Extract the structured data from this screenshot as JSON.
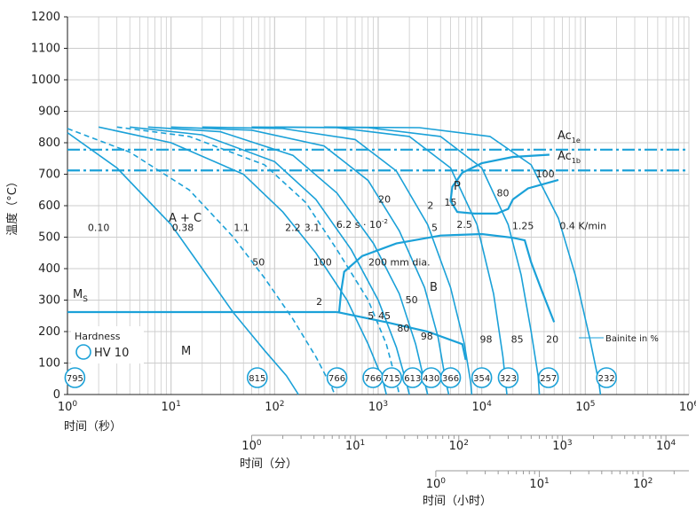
{
  "chart_data": {
    "type": "line",
    "title": "",
    "ylabel": "温度（°C）",
    "xlabel_seconds": "时间（秒）",
    "xlabel_minutes": "时间（分）",
    "xlabel_hours": "时间（小时）",
    "scale": "log",
    "xlim_seconds": [
      1,
      1000000
    ],
    "ylim": [
      0,
      1200
    ],
    "y_ticks": [
      "0",
      "100",
      "200",
      "300",
      "400",
      "500",
      "600",
      "700",
      "800",
      "900",
      "1000",
      "1100",
      "1200"
    ],
    "x_ticks_seconds": [
      {
        "value": 1,
        "base": "10",
        "exp": "0"
      },
      {
        "value": 10,
        "base": "10",
        "exp": "1"
      },
      {
        "value": 100,
        "base": "10",
        "exp": "2"
      },
      {
        "value": 1000,
        "base": "10",
        "exp": "3"
      },
      {
        "value": 10000,
        "base": "10",
        "exp": "4"
      },
      {
        "value": 100000,
        "base": "10",
        "exp": "5"
      },
      {
        "value": 1000000,
        "base": "10",
        "exp": "6"
      }
    ],
    "x_ticks_minutes": [
      {
        "value": 1,
        "base": "10",
        "exp": "0"
      },
      {
        "value": 10,
        "base": "10",
        "exp": "1"
      },
      {
        "value": 100,
        "base": "10",
        "exp": "2"
      },
      {
        "value": 1000,
        "base": "10",
        "exp": "3"
      },
      {
        "value": 10000,
        "base": "10",
        "exp": "4"
      }
    ],
    "x_ticks_hours": [
      {
        "value": 1,
        "base": "10",
        "exp": "0"
      },
      {
        "value": 10,
        "base": "10",
        "exp": "1"
      },
      {
        "value": 100,
        "base": "10",
        "exp": "2"
      }
    ],
    "lines": {
      "Ac1e": {
        "label": "Ac",
        "sub": "1e",
        "y": 778
      },
      "Ac1b": {
        "label": "Ac",
        "sub": "1b",
        "y": 712
      },
      "Ms": {
        "label": "M",
        "sub": "S",
        "y": 262
      }
    },
    "regions": [
      "A + C",
      "P",
      "B",
      "M"
    ],
    "cooling_curves": [
      {
        "label": "0.10",
        "style": "solid",
        "points": [
          [
            1,
            832
          ],
          [
            3,
            720
          ],
          [
            10,
            540
          ],
          [
            20,
            400
          ],
          [
            40,
            260
          ],
          [
            80,
            140
          ],
          [
            130,
            60
          ],
          [
            170,
            0
          ]
        ]
      },
      {
        "label": "0.38",
        "style": "dashed",
        "points": [
          [
            1,
            845
          ],
          [
            4,
            770
          ],
          [
            15,
            650
          ],
          [
            40,
            500
          ],
          [
            80,
            370
          ],
          [
            150,
            240
          ],
          [
            250,
            120
          ],
          [
            360,
            20
          ],
          [
            380,
            0
          ]
        ]
      },
      {
        "label": "1.1",
        "style": "solid",
        "points": [
          [
            2,
            850
          ],
          [
            10,
            800
          ],
          [
            50,
            700
          ],
          [
            120,
            580
          ],
          [
            250,
            450
          ],
          [
            500,
            300
          ],
          [
            800,
            160
          ],
          [
            1100,
            50
          ],
          [
            1200,
            0
          ]
        ]
      },
      {
        "label": "2.2",
        "style": "dashed",
        "points": [
          [
            3,
            850
          ],
          [
            15,
            820
          ],
          [
            80,
            730
          ],
          [
            200,
            610
          ],
          [
            400,
            460
          ],
          [
            800,
            300
          ],
          [
            1200,
            160
          ],
          [
            1500,
            40
          ],
          [
            1600,
            0
          ]
        ]
      },
      {
        "label": "3.1",
        "style": "solid",
        "points": [
          [
            4,
            850
          ],
          [
            20,
            825
          ],
          [
            100,
            740
          ],
          [
            250,
            620
          ],
          [
            550,
            460
          ],
          [
            1000,
            300
          ],
          [
            1500,
            150
          ],
          [
            1900,
            30
          ],
          [
            2000,
            0
          ]
        ]
      },
      {
        "label": "6.2",
        "style": "solid",
        "points": [
          [
            6,
            850
          ],
          [
            30,
            835
          ],
          [
            150,
            760
          ],
          [
            400,
            640
          ],
          [
            900,
            480
          ],
          [
            1600,
            320
          ],
          [
            2300,
            160
          ],
          [
            2800,
            40
          ],
          [
            3000,
            0
          ]
        ]
      },
      {
        "label": "10",
        "style": "solid",
        "points": [
          [
            10,
            850
          ],
          [
            60,
            840
          ],
          [
            300,
            790
          ],
          [
            800,
            680
          ],
          [
            1600,
            520
          ],
          [
            2800,
            340
          ],
          [
            3800,
            180
          ],
          [
            4500,
            40
          ],
          [
            4800,
            0
          ]
        ]
      },
      {
        "label": "20",
        "style": "solid",
        "points": [
          [
            20,
            850
          ],
          [
            120,
            845
          ],
          [
            600,
            810
          ],
          [
            1500,
            710
          ],
          [
            3000,
            540
          ],
          [
            5000,
            340
          ],
          [
            6800,
            160
          ],
          [
            7800,
            40
          ],
          [
            8000,
            0
          ]
        ]
      },
      {
        "label": "2.5",
        "style": "solid",
        "points": [
          [
            60,
            850
          ],
          [
            400,
            848
          ],
          [
            2000,
            820
          ],
          [
            5000,
            720
          ],
          [
            9000,
            540
          ],
          [
            13000,
            320
          ],
          [
            16000,
            120
          ],
          [
            17500,
            0
          ]
        ]
      },
      {
        "label": "1.25",
        "style": "solid",
        "points": [
          [
            100,
            850
          ],
          [
            800,
            848
          ],
          [
            4000,
            820
          ],
          [
            10000,
            720
          ],
          [
            18000,
            540
          ],
          [
            24000,
            380
          ],
          [
            30000,
            200
          ],
          [
            35000,
            60
          ],
          [
            36000,
            0
          ]
        ]
      },
      {
        "label": "0.4 K/min",
        "style": "solid",
        "points": [
          [
            300,
            850
          ],
          [
            2500,
            848
          ],
          [
            12000,
            820
          ],
          [
            30000,
            730
          ],
          [
            55000,
            560
          ],
          [
            80000,
            380
          ],
          [
            110000,
            180
          ],
          [
            135000,
            40
          ],
          [
            140000,
            0
          ]
        ]
      }
    ],
    "cooling_labels": [
      {
        "text": "0.10",
        "x": 2.0,
        "y": 520
      },
      {
        "text": "0.38",
        "x": 13,
        "y": 520
      },
      {
        "text": "1.1",
        "x": 48,
        "y": 520
      },
      {
        "text": "2.2",
        "x": 150,
        "y": 520
      },
      {
        "text": "3.1",
        "x": 230,
        "y": 520
      },
      {
        "text": "6.2 s · 10",
        "x": 700,
        "y": 530
      },
      {
        "text": "20",
        "x": 1150,
        "y": 610
      },
      {
        "text": "2",
        "x": 3200,
        "y": 590
      },
      {
        "text": "15",
        "x": 5000,
        "y": 600
      },
      {
        "text": "5",
        "x": 3500,
        "y": 520
      },
      {
        "text": "2.5",
        "x": 6800,
        "y": 530
      },
      {
        "text": "80",
        "x": 16000,
        "y": 630
      },
      {
        "text": "100",
        "x": 41000,
        "y": 690
      },
      {
        "text": "1.25",
        "x": 25000,
        "y": 525
      },
      {
        "text": "0.4 K/min",
        "x": 95000,
        "y": 525
      },
      {
        "text": "50",
        "x": 70,
        "y": 410
      },
      {
        "text": "100",
        "x": 290,
        "y": 410
      },
      {
        "text": "200 mm dia.",
        "x": 1600,
        "y": 410
      },
      {
        "text": "50",
        "x": 2100,
        "y": 290
      },
      {
        "text": "5",
        "x": 850,
        "y": 240
      },
      {
        "text": "45",
        "x": 1150,
        "y": 240
      },
      {
        "text": "80",
        "x": 1750,
        "y": 200
      },
      {
        "text": "98",
        "x": 2950,
        "y": 175
      },
      {
        "text": "2",
        "x": 270,
        "y": 285
      },
      {
        "text": "98",
        "x": 11000,
        "y": 165
      },
      {
        "text": "85",
        "x": 22000,
        "y": 165
      },
      {
        "text": "20",
        "x": 48000,
        "y": 165
      }
    ],
    "exponent_label": "-2",
    "bainite_label": "Bainite in %",
    "legend": {
      "title": "Hardness",
      "entry": "HV 10"
    },
    "hardness": [
      {
        "value": "795",
        "x": 1.18
      },
      {
        "value": "815",
        "x": 68
      },
      {
        "value": "766",
        "x": 400
      },
      {
        "value": "766",
        "x": 890
      },
      {
        "value": "715",
        "x": 1350
      },
      {
        "value": "613",
        "x": 2150
      },
      {
        "value": "430",
        "x": 3250
      },
      {
        "value": "366",
        "x": 5000
      },
      {
        "value": "354",
        "x": 10000
      },
      {
        "value": "323",
        "x": 18000
      },
      {
        "value": "257",
        "x": 44000
      },
      {
        "value": "232",
        "x": 160000
      }
    ],
    "colors": {
      "curve": "#1ba1d8",
      "grid": "#cccccc",
      "axis": "#222222",
      "text": "#222222"
    }
  }
}
